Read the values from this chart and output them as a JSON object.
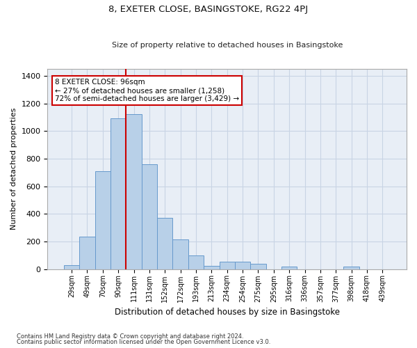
{
  "title": "8, EXETER CLOSE, BASINGSTOKE, RG22 4PJ",
  "subtitle": "Size of property relative to detached houses in Basingstoke",
  "xlabel": "Distribution of detached houses by size in Basingstoke",
  "ylabel": "Number of detached properties",
  "bin_labels": [
    "29sqm",
    "49sqm",
    "70sqm",
    "90sqm",
    "111sqm",
    "131sqm",
    "152sqm",
    "172sqm",
    "193sqm",
    "213sqm",
    "234sqm",
    "254sqm",
    "275sqm",
    "295sqm",
    "316sqm",
    "336sqm",
    "357sqm",
    "377sqm",
    "398sqm",
    "418sqm",
    "439sqm"
  ],
  "bar_heights": [
    30,
    235,
    710,
    1090,
    1120,
    760,
    370,
    215,
    100,
    25,
    55,
    55,
    40,
    0,
    20,
    0,
    0,
    0,
    20,
    0,
    0
  ],
  "bar_color": "#b8d0e8",
  "bar_edge_color": "#6699cc",
  "grid_color": "#c8d4e4",
  "property_line_color": "#cc0000",
  "annotation_text": "8 EXETER CLOSE: 96sqm\n← 27% of detached houses are smaller (1,258)\n72% of semi-detached houses are larger (3,429) →",
  "annotation_box_color": "#ffffff",
  "annotation_box_edge": "#cc0000",
  "ylim": [
    0,
    1450
  ],
  "yticks": [
    0,
    200,
    400,
    600,
    800,
    1000,
    1200,
    1400
  ],
  "footnote1": "Contains HM Land Registry data © Crown copyright and database right 2024.",
  "footnote2": "Contains public sector information licensed under the Open Government Licence v3.0.",
  "background_color": "#e8eef6",
  "fig_background": "#ffffff"
}
